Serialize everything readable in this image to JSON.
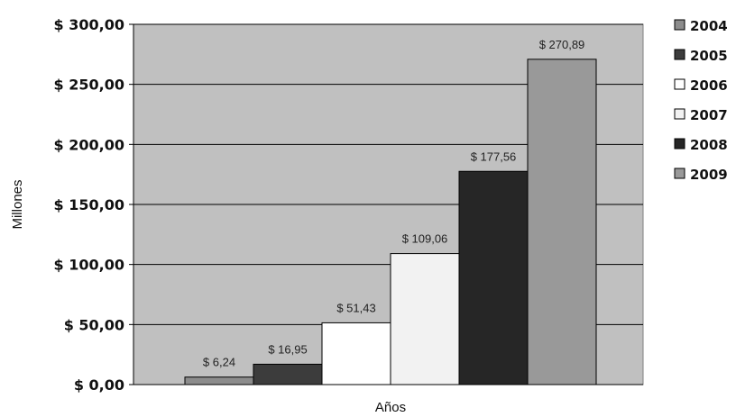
{
  "chart_data": {
    "type": "bar",
    "categories": [
      "2004",
      "2005",
      "2006",
      "2007",
      "2008",
      "2009"
    ],
    "values": [
      6.24,
      16.95,
      51.43,
      109.06,
      177.56,
      270.89
    ],
    "data_labels": [
      "$ 6,24",
      "$ 16,95",
      "$ 51,43",
      "$ 109,06",
      "$ 177,56",
      "$ 270,89"
    ],
    "colors": [
      "#8c8c8c",
      "#3c3c3c",
      "#ffffff",
      "#f2f2f2",
      "#262626",
      "#999999"
    ],
    "legend": [
      "2004",
      "2005",
      "2006",
      "2007",
      "2008",
      "2009"
    ],
    "legend_position": "right",
    "xlabel": "Años",
    "ylabel": "Millones",
    "ylim": [
      0,
      300
    ],
    "yticks": [
      0,
      50,
      100,
      150,
      200,
      250,
      300
    ],
    "ytick_labels": [
      "$ 0,00",
      "$ 50,00",
      "$ 100,00",
      "$ 150,00",
      "$ 200,00",
      "$ 250,00",
      "$ 300,00"
    ],
    "grid": true,
    "plot_background": "#c0c0c0"
  }
}
